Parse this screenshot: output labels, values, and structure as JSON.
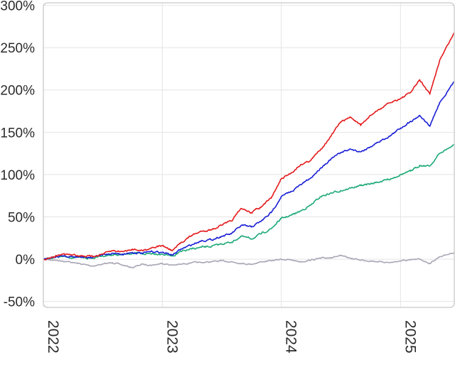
{
  "chart_data": {
    "type": "line",
    "title": "",
    "xlabel": "",
    "ylabel": "",
    "y_ticks": [
      "-50%",
      "0%",
      "50%",
      "100%",
      "150%",
      "200%",
      "250%",
      "300%"
    ],
    "y_tick_values": [
      -50,
      0,
      50,
      100,
      150,
      200,
      250,
      300
    ],
    "x_ticks": [
      "2022",
      "2023",
      "2024",
      "2025"
    ],
    "x_tick_values": [
      "2022-01-01",
      "2023-01-01",
      "2024-01-01",
      "2025-01-01"
    ],
    "xlim": [
      "2022-01-01",
      "2025-06-15"
    ],
    "ylim": [
      -57,
      303
    ],
    "grid": true,
    "legend": "none",
    "series": [
      {
        "color": "#e41a1c",
        "points": [
          [
            "2022-01-01",
            0
          ],
          [
            "2022-02-01",
            3
          ],
          [
            "2022-03-01",
            6
          ],
          [
            "2022-04-01",
            5
          ],
          [
            "2022-05-01",
            4
          ],
          [
            "2022-06-01",
            3
          ],
          [
            "2022-07-01",
            6
          ],
          [
            "2022-08-01",
            10
          ],
          [
            "2022-09-01",
            9
          ],
          [
            "2022-10-01",
            12
          ],
          [
            "2022-11-01",
            10
          ],
          [
            "2022-12-01",
            14
          ],
          [
            "2023-01-01",
            16
          ],
          [
            "2023-02-01",
            10
          ],
          [
            "2023-03-01",
            20
          ],
          [
            "2023-04-01",
            28
          ],
          [
            "2023-05-01",
            33
          ],
          [
            "2023-06-01",
            35
          ],
          [
            "2023-07-01",
            40
          ],
          [
            "2023-08-01",
            45
          ],
          [
            "2023-09-01",
            60
          ],
          [
            "2023-10-01",
            55
          ],
          [
            "2023-11-01",
            62
          ],
          [
            "2023-12-01",
            72
          ],
          [
            "2024-01-01",
            95
          ],
          [
            "2024-02-01",
            102
          ],
          [
            "2024-03-01",
            112
          ],
          [
            "2024-04-01",
            117
          ],
          [
            "2024-05-01",
            130
          ],
          [
            "2024-06-01",
            145
          ],
          [
            "2024-07-01",
            162
          ],
          [
            "2024-08-01",
            168
          ],
          [
            "2024-09-01",
            158
          ],
          [
            "2024-10-01",
            170
          ],
          [
            "2024-11-01",
            178
          ],
          [
            "2024-12-01",
            185
          ],
          [
            "2025-01-01",
            190
          ],
          [
            "2025-02-01",
            197
          ],
          [
            "2025-03-01",
            212
          ],
          [
            "2025-04-01",
            195
          ],
          [
            "2025-05-01",
            235
          ],
          [
            "2025-06-15",
            268
          ]
        ]
      },
      {
        "color": "#1a1fd6",
        "points": [
          [
            "2022-01-01",
            0
          ],
          [
            "2022-02-01",
            2
          ],
          [
            "2022-03-01",
            4
          ],
          [
            "2022-04-01",
            3
          ],
          [
            "2022-05-01",
            3
          ],
          [
            "2022-06-01",
            2
          ],
          [
            "2022-07-01",
            5
          ],
          [
            "2022-08-01",
            7
          ],
          [
            "2022-09-01",
            6
          ],
          [
            "2022-10-01",
            8
          ],
          [
            "2022-11-01",
            7
          ],
          [
            "2022-12-01",
            9
          ],
          [
            "2023-01-01",
            8
          ],
          [
            "2023-02-01",
            5
          ],
          [
            "2023-03-01",
            12
          ],
          [
            "2023-04-01",
            17
          ],
          [
            "2023-05-01",
            22
          ],
          [
            "2023-06-01",
            23
          ],
          [
            "2023-07-01",
            27
          ],
          [
            "2023-08-01",
            30
          ],
          [
            "2023-09-01",
            40
          ],
          [
            "2023-10-01",
            38
          ],
          [
            "2023-11-01",
            45
          ],
          [
            "2023-12-01",
            55
          ],
          [
            "2024-01-01",
            74
          ],
          [
            "2024-02-01",
            80
          ],
          [
            "2024-03-01",
            88
          ],
          [
            "2024-04-01",
            96
          ],
          [
            "2024-05-01",
            108
          ],
          [
            "2024-06-01",
            118
          ],
          [
            "2024-07-01",
            126
          ],
          [
            "2024-08-01",
            130
          ],
          [
            "2024-09-01",
            127
          ],
          [
            "2024-10-01",
            133
          ],
          [
            "2024-11-01",
            140
          ],
          [
            "2024-12-01",
            146
          ],
          [
            "2025-01-01",
            155
          ],
          [
            "2025-02-01",
            163
          ],
          [
            "2025-03-01",
            170
          ],
          [
            "2025-04-01",
            157
          ],
          [
            "2025-05-01",
            185
          ],
          [
            "2025-06-15",
            210
          ]
        ]
      },
      {
        "color": "#1daa77",
        "points": [
          [
            "2022-01-01",
            0
          ],
          [
            "2022-02-01",
            2
          ],
          [
            "2022-03-01",
            3
          ],
          [
            "2022-04-01",
            2
          ],
          [
            "2022-05-01",
            2
          ],
          [
            "2022-06-01",
            1
          ],
          [
            "2022-07-01",
            4
          ],
          [
            "2022-08-01",
            5
          ],
          [
            "2022-09-01",
            5
          ],
          [
            "2022-10-01",
            7
          ],
          [
            "2022-11-01",
            6
          ],
          [
            "2022-12-01",
            7
          ],
          [
            "2023-01-01",
            6
          ],
          [
            "2023-02-01",
            4
          ],
          [
            "2023-03-01",
            9
          ],
          [
            "2023-04-01",
            12
          ],
          [
            "2023-05-01",
            14
          ],
          [
            "2023-06-01",
            15
          ],
          [
            "2023-07-01",
            18
          ],
          [
            "2023-08-01",
            20
          ],
          [
            "2023-09-01",
            27
          ],
          [
            "2023-10-01",
            24
          ],
          [
            "2023-11-01",
            30
          ],
          [
            "2023-12-01",
            36
          ],
          [
            "2024-01-01",
            48
          ],
          [
            "2024-02-01",
            52
          ],
          [
            "2024-03-01",
            57
          ],
          [
            "2024-04-01",
            64
          ],
          [
            "2024-05-01",
            74
          ],
          [
            "2024-06-01",
            78
          ],
          [
            "2024-07-01",
            81
          ],
          [
            "2024-08-01",
            84
          ],
          [
            "2024-09-01",
            87
          ],
          [
            "2024-10-01",
            89
          ],
          [
            "2024-11-01",
            92
          ],
          [
            "2024-12-01",
            95
          ],
          [
            "2025-01-01",
            100
          ],
          [
            "2025-02-01",
            104
          ],
          [
            "2025-03-01",
            111
          ],
          [
            "2025-04-01",
            110
          ],
          [
            "2025-05-01",
            125
          ],
          [
            "2025-06-15",
            135
          ]
        ]
      },
      {
        "color": "#a9a6b5",
        "points": [
          [
            "2022-01-01",
            0
          ],
          [
            "2022-02-01",
            -1
          ],
          [
            "2022-03-01",
            -2
          ],
          [
            "2022-04-01",
            -4
          ],
          [
            "2022-05-01",
            -6
          ],
          [
            "2022-06-01",
            -8
          ],
          [
            "2022-07-01",
            -6
          ],
          [
            "2022-08-01",
            -4
          ],
          [
            "2022-09-01",
            -7
          ],
          [
            "2022-10-01",
            -10
          ],
          [
            "2022-11-01",
            -6
          ],
          [
            "2022-12-01",
            -7
          ],
          [
            "2023-01-01",
            -5
          ],
          [
            "2023-02-01",
            -7
          ],
          [
            "2023-03-01",
            -6
          ],
          [
            "2023-04-01",
            -4
          ],
          [
            "2023-05-01",
            -4
          ],
          [
            "2023-06-01",
            -3
          ],
          [
            "2023-07-01",
            -2
          ],
          [
            "2023-08-01",
            -3
          ],
          [
            "2023-09-01",
            -5
          ],
          [
            "2023-10-01",
            -6
          ],
          [
            "2023-11-01",
            -3
          ],
          [
            "2023-12-01",
            -2
          ],
          [
            "2024-01-01",
            0
          ],
          [
            "2024-02-01",
            -1
          ],
          [
            "2024-03-01",
            -3
          ],
          [
            "2024-04-01",
            -1
          ],
          [
            "2024-05-01",
            1
          ],
          [
            "2024-06-01",
            2
          ],
          [
            "2024-07-01",
            4
          ],
          [
            "2024-08-01",
            1
          ],
          [
            "2024-09-01",
            -1
          ],
          [
            "2024-10-01",
            -2
          ],
          [
            "2024-11-01",
            -3
          ],
          [
            "2024-12-01",
            -4
          ],
          [
            "2025-01-01",
            -2
          ],
          [
            "2025-02-01",
            -1
          ],
          [
            "2025-03-01",
            0
          ],
          [
            "2025-04-01",
            -5
          ],
          [
            "2025-05-01",
            3
          ],
          [
            "2025-06-15",
            8
          ]
        ]
      }
    ]
  }
}
